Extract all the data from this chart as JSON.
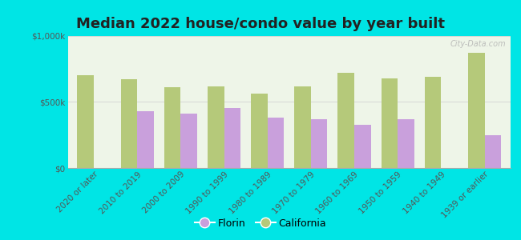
{
  "title": "Median 2022 house/condo value by year built",
  "categories": [
    "2020 or later",
    "2010 to 2019",
    "2000 to 2009",
    "1990 to 1999",
    "1980 to 1989",
    "1970 to 1979",
    "1960 to 1969",
    "1950 to 1959",
    "1940 to 1949",
    "1939 or earlier"
  ],
  "florin_values": [
    null,
    430000,
    410000,
    455000,
    380000,
    370000,
    330000,
    370000,
    null,
    250000
  ],
  "california_values": [
    700000,
    670000,
    615000,
    620000,
    565000,
    620000,
    720000,
    680000,
    690000,
    870000
  ],
  "florin_color": "#c9a0dc",
  "california_color": "#b5c97a",
  "bg_outer": "#00e5e5",
  "bg_plot": "#eef5e8",
  "ylim": [
    0,
    1000000
  ],
  "ytick_labels": [
    "$0",
    "$500k",
    "$1,000k"
  ],
  "bar_width": 0.38,
  "title_fontsize": 13,
  "legend_fontsize": 9,
  "tick_fontsize": 7.5,
  "watermark": "City-Data.com"
}
